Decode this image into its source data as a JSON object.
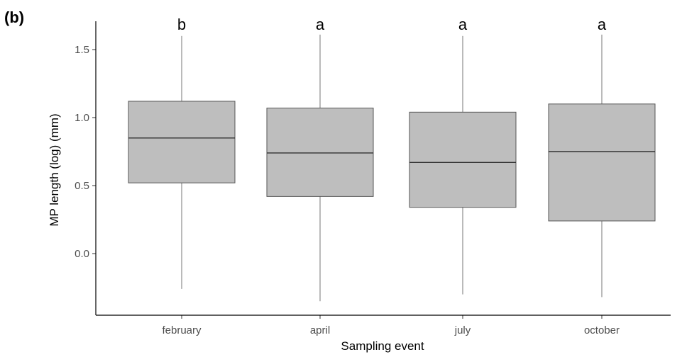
{
  "chart_data": {
    "type": "box",
    "panel_label": "(b)",
    "xlabel": "Sampling event",
    "ylabel": "MP length (log) (mm)",
    "ylim": [
      -0.45,
      1.72
    ],
    "yticks": [
      0.0,
      0.5,
      1.0,
      1.5
    ],
    "ytick_labels": [
      "0.0",
      "0.5",
      "1.0",
      "1.5"
    ],
    "grid": false,
    "categories": [
      "february",
      "april",
      "july",
      "october"
    ],
    "boxes": [
      {
        "category": "february",
        "min": -0.26,
        "q1": 0.52,
        "median": 0.85,
        "q3": 1.12,
        "max": 1.6,
        "group": "b"
      },
      {
        "category": "april",
        "min": -0.35,
        "q1": 0.42,
        "median": 0.74,
        "q3": 1.07,
        "max": 1.61,
        "group": "a"
      },
      {
        "category": "july",
        "min": -0.3,
        "q1": 0.34,
        "median": 0.67,
        "q3": 1.04,
        "max": 1.6,
        "group": "a"
      },
      {
        "category": "october",
        "min": -0.32,
        "q1": 0.24,
        "median": 0.75,
        "q3": 1.1,
        "max": 1.61,
        "group": "a"
      }
    ],
    "colors": {
      "box_fill": "#bebebe",
      "box_stroke": "#555555",
      "whisker": "#8c8c8c",
      "median": "#333333"
    }
  }
}
